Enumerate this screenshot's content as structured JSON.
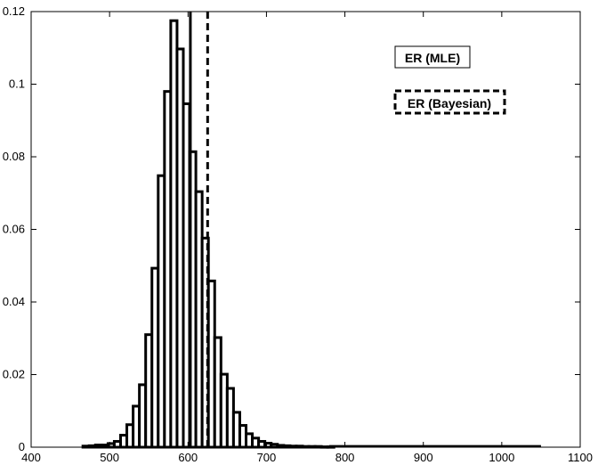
{
  "chart_data": {
    "type": "bar",
    "title": "",
    "xlabel": "",
    "ylabel": "",
    "xlim": [
      400,
      1100
    ],
    "ylim": [
      0,
      0.12
    ],
    "xticks": [
      "400",
      "500",
      "600",
      "700",
      "800",
      "900",
      "1000",
      "1100"
    ],
    "yticks": [
      "0",
      "0.02",
      "0.04",
      "0.06",
      "0.08",
      "0.1",
      "0.12"
    ],
    "grid": false,
    "bin_width": 8,
    "bins": [
      {
        "x": 470,
        "y": 0.0003
      },
      {
        "x": 478,
        "y": 0.0004
      },
      {
        "x": 486,
        "y": 0.0006
      },
      {
        "x": 494,
        "y": 0.0006
      },
      {
        "x": 502,
        "y": 0.001
      },
      {
        "x": 510,
        "y": 0.0016
      },
      {
        "x": 518,
        "y": 0.0033
      },
      {
        "x": 526,
        "y": 0.0062
      },
      {
        "x": 534,
        "y": 0.0113
      },
      {
        "x": 542,
        "y": 0.0172
      },
      {
        "x": 550,
        "y": 0.031
      },
      {
        "x": 558,
        "y": 0.0493
      },
      {
        "x": 566,
        "y": 0.0748
      },
      {
        "x": 574,
        "y": 0.098
      },
      {
        "x": 582,
        "y": 0.1175
      },
      {
        "x": 590,
        "y": 0.1097
      },
      {
        "x": 598,
        "y": 0.0946
      },
      {
        "x": 606,
        "y": 0.0814
      },
      {
        "x": 614,
        "y": 0.0704
      },
      {
        "x": 622,
        "y": 0.0576
      },
      {
        "x": 630,
        "y": 0.0458
      },
      {
        "x": 638,
        "y": 0.0302
      },
      {
        "x": 646,
        "y": 0.0201
      },
      {
        "x": 654,
        "y": 0.0162
      },
      {
        "x": 662,
        "y": 0.0096
      },
      {
        "x": 670,
        "y": 0.006
      },
      {
        "x": 678,
        "y": 0.0037
      },
      {
        "x": 686,
        "y": 0.0025
      },
      {
        "x": 694,
        "y": 0.0016
      },
      {
        "x": 702,
        "y": 0.0011
      },
      {
        "x": 710,
        "y": 0.0008
      },
      {
        "x": 718,
        "y": 0.0005
      },
      {
        "x": 726,
        "y": 0.0004
      },
      {
        "x": 734,
        "y": 0.0003
      },
      {
        "x": 742,
        "y": 0.0003
      },
      {
        "x": 750,
        "y": 0.0002
      },
      {
        "x": 758,
        "y": 0.0002
      },
      {
        "x": 766,
        "y": 0.0002
      },
      {
        "x": 774,
        "y": 0.0001
      },
      {
        "x": 782,
        "y": 0.0001
      }
    ],
    "tail_line": {
      "x_start": 780,
      "x_end": 1050,
      "y": 0.0001
    },
    "reference_lines": [
      {
        "name": "ER (MLE)",
        "x": 603,
        "style": "solid"
      },
      {
        "name": "ER (Bayesian)",
        "x": 625,
        "style": "dashed"
      }
    ],
    "legend_position": "top-right"
  },
  "legend": {
    "mle_label": "ER (MLE)",
    "bayes_label": "ER (Bayesian)"
  },
  "colors": {
    "axes": "#000000",
    "bars_fill": "#ffffff",
    "bars_stroke": "#000000"
  }
}
